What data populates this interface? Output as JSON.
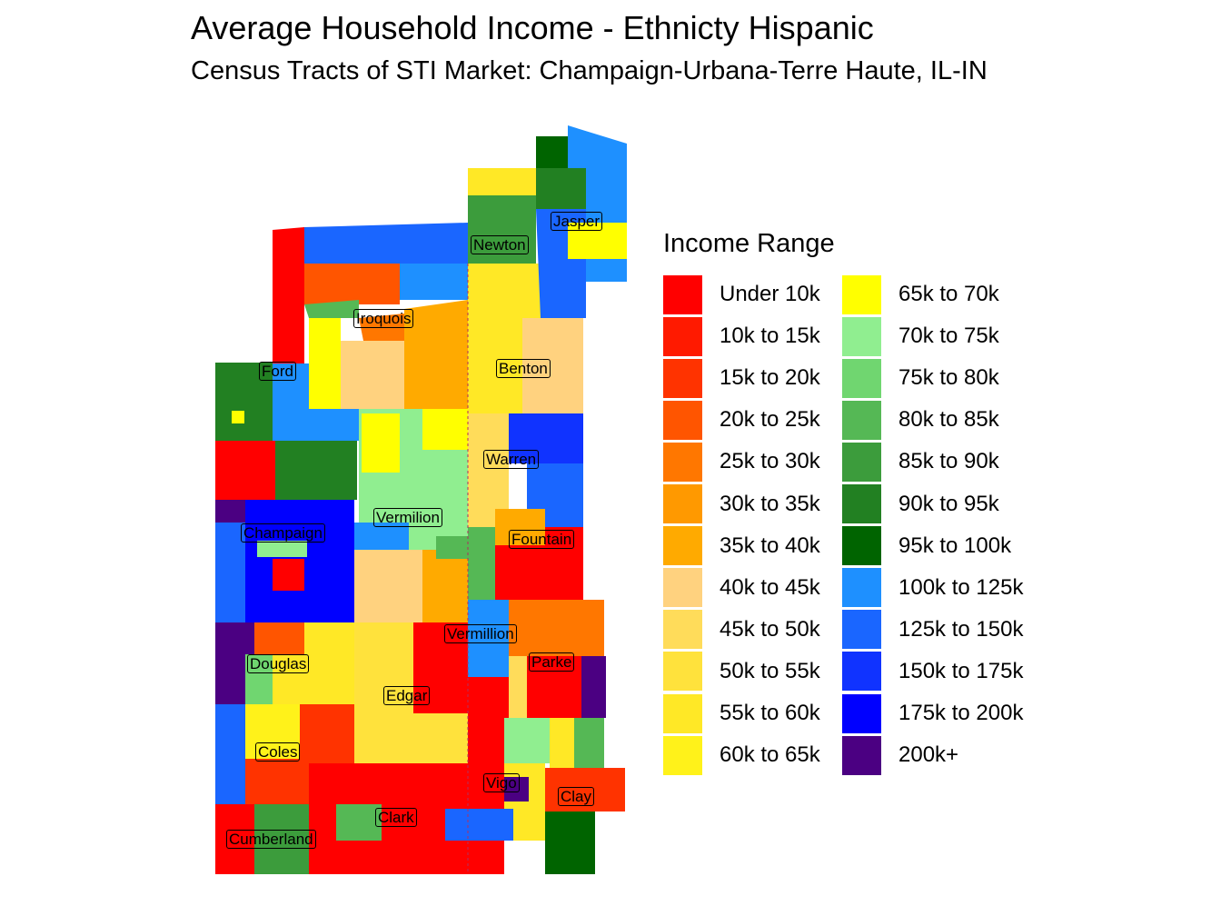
{
  "title": "Average Household Income - Ethnicty Hispanic",
  "subtitle": "Census Tracts of STI Market: Champaign-Urbana-Terre Haute, IL-IN",
  "legend": {
    "title": "Income Range",
    "items": [
      {
        "label": "Under 10k",
        "color": "#ff0000"
      },
      {
        "label": "10k to 15k",
        "color": "#ff1a00"
      },
      {
        "label": "15k to 20k",
        "color": "#ff3300"
      },
      {
        "label": "20k to 25k",
        "color": "#ff5500"
      },
      {
        "label": "25k to 30k",
        "color": "#ff7700"
      },
      {
        "label": "30k to 35k",
        "color": "#ff9900"
      },
      {
        "label": "35k to 40k",
        "color": "#ffaa00"
      },
      {
        "label": "40k to 45k",
        "color": "#ffd27f"
      },
      {
        "label": "45k to 50k",
        "color": "#ffdc5a"
      },
      {
        "label": "50k to 55k",
        "color": "#ffe23c"
      },
      {
        "label": "55k to 60k",
        "color": "#ffe826"
      },
      {
        "label": "60k to 65k",
        "color": "#fff21a"
      },
      {
        "label": "65k to 70k",
        "color": "#ffff00"
      },
      {
        "label": "70k to 75k",
        "color": "#90ee90"
      },
      {
        "label": "75k to 80k",
        "color": "#70d670"
      },
      {
        "label": "80k to 85k",
        "color": "#55b855"
      },
      {
        "label": "85k to 90k",
        "color": "#3c9c3c"
      },
      {
        "label": "90k to 95k",
        "color": "#228022"
      },
      {
        "label": "95k to 100k",
        "color": "#006400"
      },
      {
        "label": "100k to 125k",
        "color": "#1e90ff"
      },
      {
        "label": "125k to 150k",
        "color": "#1a66ff"
      },
      {
        "label": "150k to 175k",
        "color": "#1033ff"
      },
      {
        "label": "175k to 200k",
        "color": "#0000ff"
      },
      {
        "label": "200k+",
        "color": "#4b0082"
      }
    ]
  },
  "counties": [
    {
      "id": "jasper",
      "name": "Jasper"
    },
    {
      "id": "newton",
      "name": "Newton"
    },
    {
      "id": "iroquois",
      "name": "Iroquois"
    },
    {
      "id": "benton",
      "name": "Benton"
    },
    {
      "id": "ford",
      "name": "Ford"
    },
    {
      "id": "warren",
      "name": "Warren"
    },
    {
      "id": "vermilion",
      "name": "Vermilion"
    },
    {
      "id": "champaign",
      "name": "Champaign"
    },
    {
      "id": "fountain",
      "name": "Fountain"
    },
    {
      "id": "vermillion",
      "name": "Vermillion"
    },
    {
      "id": "douglas",
      "name": "Douglas"
    },
    {
      "id": "parke",
      "name": "Parke"
    },
    {
      "id": "edgar",
      "name": "Edgar"
    },
    {
      "id": "coles",
      "name": "Coles"
    },
    {
      "id": "vigo",
      "name": "Vigo"
    },
    {
      "id": "clay",
      "name": "Clay"
    },
    {
      "id": "clark",
      "name": "Clark"
    },
    {
      "id": "cumberland",
      "name": "Cumberland"
    }
  ]
}
